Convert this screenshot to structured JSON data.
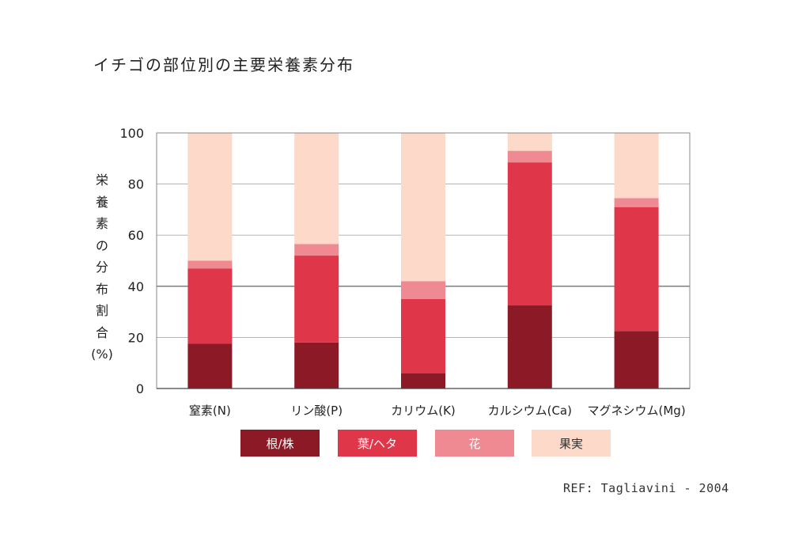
{
  "title": "イチゴの部位別の主要栄養素分布",
  "ylabel_chars": [
    "栄",
    "養",
    "素",
    "の",
    "分",
    "布",
    "割",
    "合",
    "(%)"
  ],
  "reference": "REF: Tagliavini - 2004",
  "legend": [
    {
      "label": "根/株",
      "color": "#8b1a26"
    },
    {
      "label": "葉/ヘタ",
      "color": "#e0364a"
    },
    {
      "label": "花",
      "color": "#f08a92"
    },
    {
      "label": "果実",
      "color": "#fcd9c8"
    }
  ],
  "chart_data": {
    "type": "bar",
    "stacked": true,
    "title": "イチゴの部位別の主要栄養素分布",
    "ylabel": "栄養素の分布割合(%)",
    "xlabel": "",
    "ylim": [
      0,
      100
    ],
    "yticks": [
      0,
      20,
      40,
      60,
      80,
      100
    ],
    "grid": true,
    "legend_position": "bottom",
    "categories": [
      "窒素(N)",
      "リン酸(P)",
      "カリウム(K)",
      "カルシウム(Ca)",
      "マグネシウム(Mg)"
    ],
    "series": [
      {
        "name": "根/株",
        "color": "#8b1a26",
        "values": [
          17.5,
          18,
          6,
          32.5,
          22.5
        ]
      },
      {
        "name": "葉/ヘタ",
        "color": "#e0364a",
        "values": [
          29.5,
          34,
          29,
          56,
          48.5
        ]
      },
      {
        "name": "花",
        "color": "#f08a92",
        "values": [
          3,
          4.5,
          7,
          4.5,
          3.5
        ]
      },
      {
        "name": "果実",
        "color": "#fcd9c8",
        "values": [
          50,
          43.5,
          58,
          7,
          25.5
        ]
      }
    ]
  }
}
